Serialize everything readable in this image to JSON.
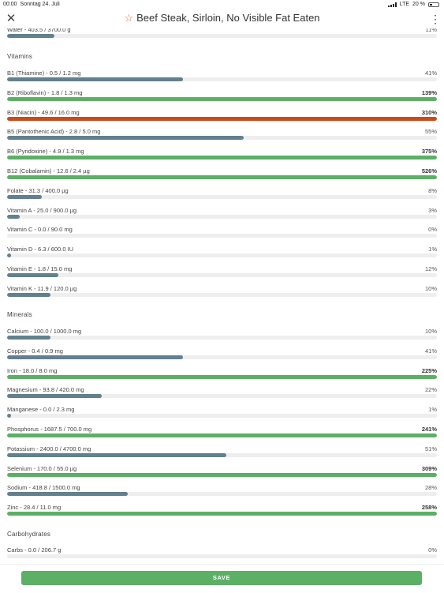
{
  "status_bar": {
    "time": "00:00",
    "date": "Sonntag 24. Juli",
    "network": "LTE",
    "battery": "20 %"
  },
  "header": {
    "title": "Beef Steak, Sirloin, No Visible Fat Eaten",
    "close_icon": "close-icon",
    "favorite_icon": "star-outline-icon",
    "menu_icon": "more-vertical-icon"
  },
  "colors": {
    "under": "#62808e",
    "over": "#5cb065",
    "excess": "#c94a1a",
    "track": "#eeeeee",
    "save_button": "#5cb065"
  },
  "water": {
    "label": "Water - 403.5 / 3700.0 g",
    "percent": "11%",
    "fraction": 0.11
  },
  "sections": {
    "vitamins": "Vitamins",
    "minerals": "Minerals",
    "carbohydrates": "Carbohydrates"
  },
  "vitamins": [
    {
      "label": "B1 (Thiamine) - 0.5 / 1.2 mg",
      "percent": "41%",
      "fraction": 0.41,
      "status": "under"
    },
    {
      "label": "B2 (Riboflavin) - 1.8 / 1.3 mg",
      "percent": "139%",
      "fraction": 1.0,
      "status": "over"
    },
    {
      "label": "B3 (Niacin) - 49.6 / 16.0 mg",
      "percent": "310%",
      "fraction": 1.0,
      "status": "excess"
    },
    {
      "label": "B5 (Pantothenic Acid) - 2.8 / 5.0 mg",
      "percent": "55%",
      "fraction": 0.55,
      "status": "under"
    },
    {
      "label": "B6 (Pyridoxine) - 4.9 / 1.3 mg",
      "percent": "375%",
      "fraction": 1.0,
      "status": "over"
    },
    {
      "label": "B12 (Cobalamin) - 12.6 / 2.4 µg",
      "percent": "526%",
      "fraction": 1.0,
      "status": "over"
    },
    {
      "label": "Folate - 31.3 / 400.0 µg",
      "percent": "8%",
      "fraction": 0.08,
      "status": "under"
    },
    {
      "label": "Vitamin A - 25.0 / 900.0 µg",
      "percent": "3%",
      "fraction": 0.03,
      "status": "under"
    },
    {
      "label": "Vitamin C - 0.0 / 90.0 mg",
      "percent": "0%",
      "fraction": 0.0,
      "status": "under"
    },
    {
      "label": "Vitamin D - 6.3 / 600.0 IU",
      "percent": "1%",
      "fraction": 0.01,
      "status": "under"
    },
    {
      "label": "Vitamin E - 1.8 / 15.0 mg",
      "percent": "12%",
      "fraction": 0.12,
      "status": "under"
    },
    {
      "label": "Vitamin K - 11.9 / 120.0 µg",
      "percent": "10%",
      "fraction": 0.1,
      "status": "under"
    }
  ],
  "minerals": [
    {
      "label": "Calcium - 100.0 / 1000.0 mg",
      "percent": "10%",
      "fraction": 0.1,
      "status": "under"
    },
    {
      "label": "Copper - 0.4 / 0.9 mg",
      "percent": "41%",
      "fraction": 0.41,
      "status": "under"
    },
    {
      "label": "Iron - 18.0 / 8.0 mg",
      "percent": "225%",
      "fraction": 1.0,
      "status": "over"
    },
    {
      "label": "Magnesium - 93.8 / 420.0 mg",
      "percent": "22%",
      "fraction": 0.22,
      "status": "under"
    },
    {
      "label": "Manganese - 0.0 / 2.3 mg",
      "percent": "1%",
      "fraction": 0.01,
      "status": "under"
    },
    {
      "label": "Phosphorus - 1687.5 / 700.0 mg",
      "percent": "241%",
      "fraction": 1.0,
      "status": "over"
    },
    {
      "label": "Potassium - 2400.0 / 4700.0 mg",
      "percent": "51%",
      "fraction": 0.51,
      "status": "under"
    },
    {
      "label": "Selenium - 170.0 / 55.0 µg",
      "percent": "309%",
      "fraction": 1.0,
      "status": "over"
    },
    {
      "label": "Sodium - 418.8 / 1500.0 mg",
      "percent": "28%",
      "fraction": 0.28,
      "status": "under"
    },
    {
      "label": "Zinc - 28.4 / 11.0 mg",
      "percent": "258%",
      "fraction": 1.0,
      "status": "over"
    }
  ],
  "carbohydrates": [
    {
      "label": "Carbs - 0.0 / 206.7 g",
      "percent": "0%",
      "fraction": 0.0,
      "status": "under"
    }
  ],
  "footer": {
    "save_label": "SAVE"
  }
}
